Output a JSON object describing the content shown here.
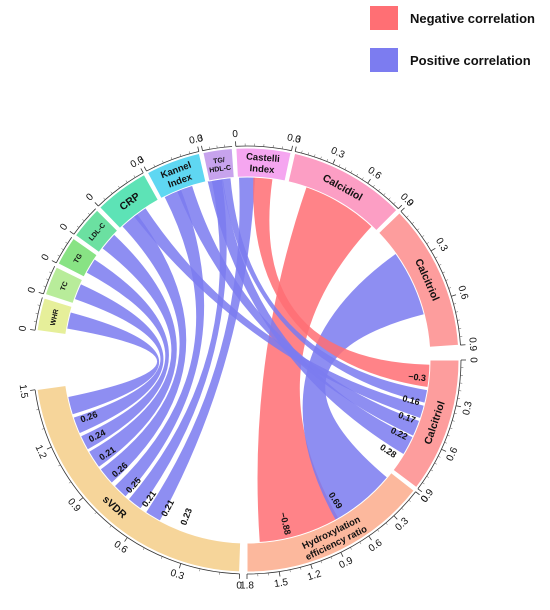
{
  "chart_data": {
    "type": "chord",
    "legend": [
      {
        "name": "Negative correlation",
        "color": "#ff6f74"
      },
      {
        "name": "Positive correlation",
        "color": "#7c7cf0"
      }
    ],
    "colors": {
      "negative": "#ff6f74",
      "positive": "#7c7cf0"
    },
    "segments": [
      {
        "id": "sVDR",
        "label": "sVDR",
        "scale_max": 1.5,
        "ticks": [
          "0",
          "0.3",
          "0.6",
          "0.9",
          "1.2",
          "1.5"
        ],
        "color": "#f6d59a"
      },
      {
        "id": "HER",
        "label": "Hydroxylation efficiency ratio",
        "label_lines": [
          "Hydroxylation",
          "efficiency ratio"
        ],
        "scale_max": 1.8,
        "ticks": [
          "0",
          "0.3",
          "0.6",
          "0.9",
          "1.2",
          "1.5",
          "1.8"
        ],
        "color": "#fcb89d"
      },
      {
        "id": "CalcitriolB",
        "label": "Calcitriol",
        "scale_max": 0.9,
        "ticks": [
          "0",
          "0.3",
          "0.6",
          "0.9"
        ],
        "color": "#fd9d9d"
      },
      {
        "id": "CalcitriolR",
        "label": "Calcitriol",
        "scale_max": 0.9,
        "ticks": [
          "0",
          "0.3",
          "0.6",
          "0.9"
        ],
        "color": "#fd9d9d"
      },
      {
        "id": "Calcidiol",
        "label": "Calcidiol",
        "scale_max": 0.9,
        "ticks": [
          "0",
          "0.3",
          "0.6",
          "0.9"
        ],
        "color": "#fc9ec4"
      },
      {
        "id": "Castelli",
        "label": "Castelli Index",
        "label_lines": [
          "Castelli",
          "Index"
        ],
        "scale_max": 0.3,
        "ticks": [
          "0",
          "0.3"
        ],
        "color": "#f5a6f0"
      },
      {
        "id": "TGHDL",
        "label": "TG/ HDL-C",
        "label_lines": [
          "TG/",
          "HDL-C"
        ],
        "scale_max": 0.2,
        "ticks": [
          "0"
        ],
        "color": "#c7a3ed"
      },
      {
        "id": "Kannel",
        "label": "Kannel Index",
        "label_lines": [
          "Kannel",
          "Index"
        ],
        "scale_max": 0.3,
        "ticks": [
          "0",
          "0.3"
        ],
        "color": "#5fd7f2"
      },
      {
        "id": "CRP",
        "label": "CRP",
        "scale_max": 0.3,
        "ticks": [
          "0",
          "0.3"
        ],
        "color": "#5de3b6"
      },
      {
        "id": "LDLC",
        "label": "LDL-C",
        "scale_max": 0.2,
        "ticks": [
          "0"
        ],
        "color": "#6be0a1"
      },
      {
        "id": "TG",
        "label": "TG",
        "scale_max": 0.2,
        "ticks": [
          "0"
        ],
        "color": "#88e384"
      },
      {
        "id": "TC",
        "label": "TC",
        "scale_max": 0.2,
        "ticks": [
          "0"
        ],
        "color": "#b8ec9a"
      },
      {
        "id": "WHR",
        "label": "WHR",
        "scale_max": 0.2,
        "ticks": [
          "0"
        ],
        "color": "#e6ef9a"
      }
    ],
    "links": [
      {
        "from": "sVDR",
        "to": "WHR",
        "value": 0.26,
        "label": "0.26",
        "sign": "positive"
      },
      {
        "from": "sVDR",
        "to": "TC",
        "value": 0.24,
        "label": "0.24",
        "sign": "positive"
      },
      {
        "from": "sVDR",
        "to": "TG",
        "value": 0.21,
        "label": "0.21",
        "sign": "positive"
      },
      {
        "from": "sVDR",
        "to": "LDLC",
        "value": 0.26,
        "label": "0.26",
        "sign": "positive"
      },
      {
        "from": "sVDR",
        "to": "CRP",
        "value": 0.25,
        "label": "0.25",
        "sign": "positive"
      },
      {
        "from": "sVDR",
        "to": "Kannel",
        "value": 0.21,
        "label": "0.21",
        "sign": "positive"
      },
      {
        "from": "sVDR",
        "to": "TGHDL",
        "value": 0.21,
        "label": "0.21",
        "sign": "positive"
      },
      {
        "from": "sVDR",
        "to": "Castelli",
        "value": 0.23,
        "label": "0.23",
        "sign": "positive"
      },
      {
        "from": "HER",
        "to": "Calcidiol",
        "value": -0.88,
        "label": "−0.88",
        "sign": "negative"
      },
      {
        "from": "HER",
        "to": "CalcitriolR",
        "value": 0.69,
        "label": "0.69",
        "sign": "positive"
      },
      {
        "from": "CalcitriolB",
        "to": "Castelli",
        "value": 0.28,
        "label": "0.28",
        "sign": "positive"
      },
      {
        "from": "CalcitriolB",
        "to": "Kannel",
        "value": 0.22,
        "label": "0.22",
        "sign": "positive"
      },
      {
        "from": "CalcitriolB",
        "to": "CRP",
        "value": 0.17,
        "label": "0.17",
        "sign": "positive"
      },
      {
        "from": "CalcitriolB",
        "to": "TGHDL",
        "value": 0.16,
        "label": "0.16",
        "sign": "positive"
      },
      {
        "from": "CalcitriolB",
        "to": "Calcidiol",
        "value": -0.3,
        "label": "−0.3",
        "sign": "negative"
      }
    ]
  }
}
